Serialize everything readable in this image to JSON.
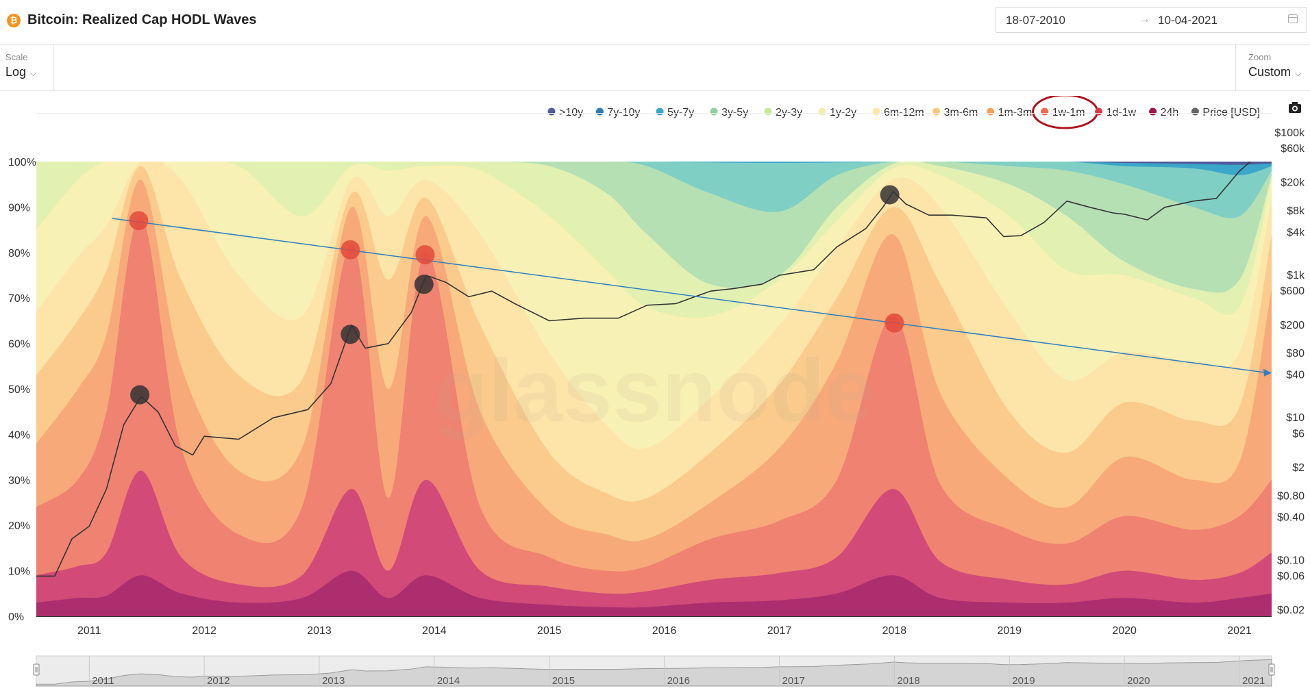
{
  "header": {
    "icon_glyph": "₿",
    "title": "Bitcoin: Realized Cap HODL Waves",
    "date_from": "18-07-2010",
    "date_arrow": "→",
    "date_to": "10-04-2021"
  },
  "controls": {
    "scale_label": "Scale",
    "scale_value": "Log",
    "zoom_label": "Zoom",
    "zoom_value": "Custom",
    "chevron": "⌵"
  },
  "chart_data": {
    "type": "area",
    "stacked": true,
    "title": "Bitcoin: Realized Cap HODL Waves",
    "watermark": "glassnode",
    "legend_placement": "top-right",
    "highlighted_legend": "1w-1m",
    "x": {
      "range": [
        "2010-07-18",
        "2021-04-10"
      ],
      "tick_labels": [
        "2011",
        "2012",
        "2013",
        "2014",
        "2015",
        "2016",
        "2017",
        "2018",
        "2019",
        "2020",
        "2021"
      ],
      "tick_positions": [
        2011.0,
        2012.0,
        2013.0,
        2014.0,
        2015.0,
        2016.0,
        2017.0,
        2018.0,
        2019.0,
        2020.0,
        2021.0
      ]
    },
    "y_left": {
      "range": [
        0,
        100
      ],
      "unit": "%",
      "tick_labels": [
        "0%",
        "10%",
        "20%",
        "30%",
        "40%",
        "50%",
        "60%",
        "70%",
        "80%",
        "90%",
        "100%"
      ],
      "tick_values": [
        0,
        10,
        20,
        30,
        40,
        50,
        60,
        70,
        80,
        90,
        100
      ]
    },
    "y_right": {
      "scale": "log",
      "unit": "USD",
      "range": [
        0.02,
        100000
      ],
      "tick_labels": [
        "$0.02",
        "$0.06",
        "$0.10",
        "$0.40",
        "$0.80",
        "$2",
        "$6",
        "$10",
        "$40",
        "$80",
        "$200",
        "$600",
        "$1k",
        "$4k",
        "$8k",
        "$20k",
        "$60k",
        "$100k"
      ],
      "tick_values": [
        0.02,
        0.06,
        0.1,
        0.4,
        0.8,
        2,
        6,
        10,
        40,
        80,
        200,
        600,
        1000,
        4000,
        8000,
        20000,
        60000,
        100000
      ]
    },
    "bands_order": [
      "24h",
      "1d-1w",
      "1w-1m",
      "1m-3m",
      "3m-6m",
      "6m-12m",
      "1y-2y",
      "2y-3y",
      "3y-5y",
      "5y-7y",
      "7y-10y",
      ">10y"
    ],
    "band_x": [
      2010.54,
      2010.9,
      2011.15,
      2011.45,
      2011.8,
      2012.3,
      2012.85,
      2013.28,
      2013.6,
      2013.93,
      2014.4,
      2015.0,
      2015.5,
      2015.85,
      2016.4,
      2017.0,
      2017.5,
      2017.99,
      2018.4,
      2019.0,
      2019.5,
      2020.0,
      2020.6,
      2021.0,
      2021.28
    ],
    "series": [
      {
        "name": "24h",
        "color": "#ad2e6e",
        "values": [
          3.0,
          4.0,
          4.5,
          9.0,
          5.0,
          3.0,
          4.0,
          10.0,
          4.0,
          9.0,
          4.0,
          2.5,
          2.0,
          2.0,
          3.0,
          3.5,
          5.0,
          9.0,
          4.0,
          3.0,
          3.0,
          4.0,
          3.0,
          4.0,
          5.0
        ]
      },
      {
        "name": "1d-1w",
        "color": "#d14a78",
        "values": [
          9.0,
          11.0,
          14.0,
          32.0,
          13.0,
          7.0,
          9.0,
          28.0,
          10.0,
          30.0,
          10.0,
          6.5,
          5.0,
          5.5,
          8.0,
          9.5,
          13.0,
          28.0,
          12.0,
          8.0,
          7.0,
          10.0,
          8.0,
          9.5,
          14.0
        ]
      },
      {
        "name": "1w-1m",
        "color": "#ef8270",
        "values": [
          24.0,
          30.0,
          45.0,
          88.0,
          37.0,
          18.0,
          24.0,
          82.0,
          26.0,
          80.0,
          24.0,
          13.0,
          10.0,
          11.0,
          17.0,
          21.0,
          30.0,
          66.0,
          29.0,
          19.0,
          16.0,
          22.0,
          19.0,
          22.0,
          30.0
        ]
      },
      {
        "name": "1m-3m",
        "color": "#f7a97a",
        "values": [
          38.0,
          50.0,
          62.0,
          96.0,
          55.0,
          32.0,
          37.0,
          90.0,
          50.0,
          88.0,
          45.0,
          23.0,
          18.0,
          17.0,
          25.0,
          37.0,
          56.0,
          84.0,
          49.0,
          30.0,
          24.0,
          35.0,
          30.0,
          34.0,
          72.0
        ]
      },
      {
        "name": "3m-6m",
        "color": "#facb8d",
        "values": [
          53.0,
          65.0,
          76.0,
          99.0,
          74.0,
          53.0,
          52.0,
          93.0,
          74.0,
          92.0,
          64.0,
          36.0,
          27.0,
          26.0,
          36.0,
          51.0,
          70.0,
          90.0,
          73.0,
          45.0,
          36.0,
          47.0,
          43.0,
          46.0,
          84.0
        ]
      },
      {
        "name": "6m-12m",
        "color": "#fde4a8",
        "values": [
          67.0,
          79.0,
          86.0,
          100.0,
          96.0,
          75.0,
          66.0,
          96.0,
          88.0,
          96.0,
          84.0,
          58.0,
          42.0,
          37.0,
          48.0,
          64.0,
          81.0,
          96.0,
          90.0,
          67.0,
          52.0,
          58.0,
          56.0,
          58.0,
          92.0
        ]
      },
      {
        "name": "1y-2y",
        "color": "#f7f1b5",
        "values": [
          85.0,
          96.0,
          100.0,
          100.0,
          100.0,
          99.0,
          88.0,
          99.0,
          98.0,
          99.0,
          98.0,
          88.0,
          76.0,
          68.0,
          66.0,
          74.0,
          87.0,
          98.5,
          97.0,
          88.0,
          76.0,
          75.0,
          70.0,
          68.0,
          96.0
        ]
      },
      {
        "name": "2y-3y",
        "color": "#e2f0b2",
        "values": [
          100.0,
          100.0,
          100.0,
          100.0,
          100.0,
          100.0,
          100.0,
          100.0,
          100.0,
          100.0,
          100.0,
          99.0,
          93.0,
          84.0,
          73.0,
          75.0,
          90.0,
          99.5,
          99.0,
          95.0,
          88.0,
          78.0,
          72.0,
          74.0,
          97.0
        ]
      },
      {
        "name": "3y-5y",
        "color": "#b5e0b4",
        "values": [
          100.0,
          100.0,
          100.0,
          100.0,
          100.0,
          100.0,
          100.0,
          100.0,
          100.0,
          100.0,
          100.0,
          100.0,
          100.0,
          99.0,
          93.0,
          89.0,
          97.0,
          100.0,
          100.0,
          99.0,
          98.0,
          95.0,
          90.0,
          88.0,
          98.0
        ]
      },
      {
        "name": "5y-7y",
        "color": "#7fcfc4",
        "values": [
          100.0,
          100.0,
          100.0,
          100.0,
          100.0,
          100.0,
          100.0,
          100.0,
          100.0,
          100.0,
          100.0,
          100.0,
          100.0,
          100.0,
          99.8,
          99.7,
          99.8,
          100.0,
          100.0,
          100.0,
          100.0,
          99.0,
          98.5,
          97.0,
          99.0
        ]
      },
      {
        "name": "7y-10y",
        "color": "#3aa6c9",
        "values": [
          100.0,
          100.0,
          100.0,
          100.0,
          100.0,
          100.0,
          100.0,
          100.0,
          100.0,
          100.0,
          100.0,
          100.0,
          100.0,
          100.0,
          100.0,
          100.0,
          100.0,
          100.0,
          100.0,
          100.0,
          100.0,
          99.7,
          99.5,
          99.3,
          99.6
        ]
      },
      {
        "name": ">10y",
        "color": "#4f5a9a",
        "values": [
          100.0,
          100.0,
          100.0,
          100.0,
          100.0,
          100.0,
          100.0,
          100.0,
          100.0,
          100.0,
          100.0,
          100.0,
          100.0,
          100.0,
          100.0,
          100.0,
          100.0,
          100.0,
          100.0,
          100.0,
          100.0,
          100.0,
          100.0,
          100.0,
          100.0
        ]
      }
    ],
    "legend": [
      {
        "name": ">10y",
        "color": "#4f5a9a"
      },
      {
        "name": "7y-10y",
        "color": "#2b7bb9"
      },
      {
        "name": "5y-7y",
        "color": "#3aa6c9"
      },
      {
        "name": "3y-5y",
        "color": "#8fd1a0"
      },
      {
        "name": "2y-3y",
        "color": "#c9e89a"
      },
      {
        "name": "1y-2y",
        "color": "#f3f0b0"
      },
      {
        "name": "6m-12m",
        "color": "#fde7a0"
      },
      {
        "name": "3m-6m",
        "color": "#f9c77c"
      },
      {
        "name": "1m-3m",
        "color": "#f7a060"
      },
      {
        "name": "1w-1m",
        "color": "#ef6a4c"
      },
      {
        "name": "1d-1w",
        "color": "#d63a4e"
      },
      {
        "name": "24h",
        "color": "#a3124b"
      },
      {
        "name": "Price [USD]",
        "color": "#666666"
      }
    ],
    "price_usd": {
      "name": "Price [USD]",
      "color": "#333333",
      "x": [
        2010.54,
        2010.7,
        2010.85,
        2011.0,
        2011.15,
        2011.3,
        2011.45,
        2011.6,
        2011.75,
        2011.9,
        2012.0,
        2012.3,
        2012.6,
        2012.9,
        2013.1,
        2013.28,
        2013.4,
        2013.6,
        2013.8,
        2013.93,
        2014.1,
        2014.3,
        2014.5,
        2014.7,
        2015.0,
        2015.3,
        2015.6,
        2015.85,
        2016.1,
        2016.4,
        2016.6,
        2016.85,
        2017.0,
        2017.3,
        2017.5,
        2017.75,
        2017.9,
        2017.99,
        2018.1,
        2018.3,
        2018.5,
        2018.8,
        2018.95,
        2019.1,
        2019.3,
        2019.5,
        2019.7,
        2019.9,
        2020.0,
        2020.2,
        2020.35,
        2020.6,
        2020.8,
        2021.0,
        2021.1,
        2021.28
      ],
      "values": [
        0.06,
        0.06,
        0.2,
        0.3,
        1.0,
        8.0,
        20.0,
        12.0,
        4.0,
        3.0,
        5.5,
        5.0,
        10.0,
        13.0,
        30.0,
        200.0,
        95.0,
        110.0,
        300.0,
        1000.0,
        800.0,
        500.0,
        600.0,
        400.0,
        230.0,
        250.0,
        250.0,
        380.0,
        400.0,
        600.0,
        650.0,
        750.0,
        1000.0,
        1200.0,
        2500.0,
        4500.0,
        9000.0,
        15000.0,
        10000.0,
        7000.0,
        7000.0,
        6400.0,
        3500.0,
        3600.0,
        5500.0,
        11000.0,
        9000.0,
        7500.0,
        7200.0,
        6000.0,
        9000.0,
        11000.0,
        12000.0,
        29000.0,
        40000.0,
        58000.0
      ]
    },
    "annotations": {
      "trend_arrow": {
        "from": [
          2011.2,
          87.5
        ],
        "to": [
          2021.28,
          53.5
        ],
        "color": "#2f7fc1"
      },
      "markers": [
        {
          "x": 2011.43,
          "y": 87,
          "color": "#e24a3a"
        },
        {
          "x": 2013.27,
          "y": 80.6,
          "color": "#e24a3a"
        },
        {
          "x": 2013.92,
          "y": 79.5,
          "color": "#e24a3a"
        },
        {
          "x": 2018.0,
          "y": 64.5,
          "color": "#e24a3a"
        },
        {
          "x": 2011.44,
          "y": 48.7,
          "color": "#333333"
        },
        {
          "x": 2013.27,
          "y": 62,
          "color": "#333333"
        },
        {
          "x": 2013.91,
          "y": 73,
          "color": "#333333"
        },
        {
          "x": 2017.96,
          "y": 92.7,
          "color": "#333333"
        }
      ]
    }
  },
  "navigator": {
    "tick_labels": [
      "2011",
      "2012",
      "2013",
      "2014",
      "2015",
      "2016",
      "2017",
      "2018",
      "2019",
      "2020",
      "2021"
    ]
  }
}
